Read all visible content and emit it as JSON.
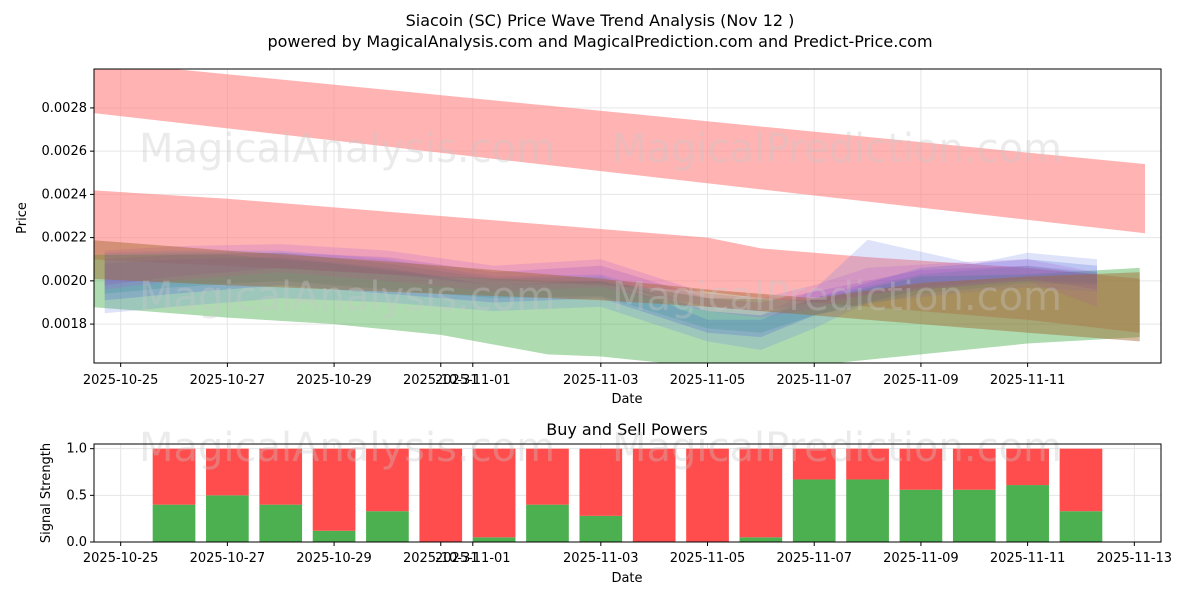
{
  "chart_data": [
    {
      "type": "area",
      "title": "Siacoin (SC) Price Wave Trend Analysis (Nov 12 )",
      "subtitle": "powered by MagicalAnalysis.com and MagicalPrediction.com and Predict-Price.com",
      "xlabel": "Date",
      "ylabel": "Price",
      "xlim": [
        -0.5,
        19.5
      ],
      "ylim": [
        0.00162,
        0.00298
      ],
      "x_ticks": [
        {
          "pos": 0,
          "label": "2025-10-25"
        },
        {
          "pos": 2,
          "label": "2025-10-27"
        },
        {
          "pos": 4,
          "label": "2025-10-29"
        },
        {
          "pos": 6,
          "label": "2025-10-31"
        },
        {
          "pos": 6.6,
          "label": "2025-11-01"
        },
        {
          "pos": 9,
          "label": "2025-11-03"
        },
        {
          "pos": 11,
          "label": "2025-11-05"
        },
        {
          "pos": 13,
          "label": "2025-11-07"
        },
        {
          "pos": 15,
          "label": "2025-11-09"
        },
        {
          "pos": 17,
          "label": "2025-11-11"
        }
      ],
      "y_ticks": [
        {
          "value": 0.0018,
          "label": "0.0018"
        },
        {
          "value": 0.002,
          "label": "0.0020"
        },
        {
          "value": 0.0022,
          "label": "0.0022"
        },
        {
          "value": 0.0024,
          "label": "0.0024"
        },
        {
          "value": 0.0026,
          "label": "0.0026"
        },
        {
          "value": 0.0028,
          "label": "0.0028"
        }
      ],
      "watermarks": [
        "MagicalAnalysis.com",
        "MagicalPrediction.com"
      ],
      "bands": [
        {
          "name": "upper-resistance",
          "color": "#ff8080",
          "opacity": 0.6,
          "x": [
            -0.65,
            19.2
          ],
          "lower": [
            0.00278,
            0.00222
          ],
          "upper": [
            0.00302,
            0.00254
          ]
        },
        {
          "name": "middle-resistance",
          "color": "#ff8080",
          "opacity": 0.6,
          "x": [
            -0.6,
            2,
            5,
            9,
            11,
            12,
            14,
            17,
            19.1
          ],
          "lower": [
            0.0021,
            0.00207,
            0.00203,
            0.00198,
            0.00195,
            0.00192,
            0.00188,
            0.00182,
            0.00176
          ],
          "upper": [
            0.00242,
            0.00238,
            0.00232,
            0.00224,
            0.0022,
            0.00215,
            0.00211,
            0.00206,
            0.00201
          ]
        },
        {
          "name": "support",
          "color": "#4caf50",
          "opacity": 0.45,
          "x": [
            -0.6,
            2,
            4,
            6,
            8,
            9,
            11,
            13,
            15,
            17,
            19.1
          ],
          "lower": [
            0.00188,
            0.00183,
            0.0018,
            0.00175,
            0.00166,
            0.00165,
            0.0016,
            0.00161,
            0.00166,
            0.00171,
            0.00174
          ],
          "upper": [
            0.00212,
            0.00212,
            0.00208,
            0.00202,
            0.002,
            0.002,
            0.00192,
            0.00191,
            0.00202,
            0.00203,
            0.00206
          ]
        },
        {
          "name": "wave-blue-a",
          "color": "#6a7fe6",
          "opacity": 0.22,
          "x": [
            -0.3,
            1,
            3,
            5,
            7,
            9,
            10,
            11,
            12,
            13,
            14,
            16,
            17,
            18.3
          ],
          "lower": [
            0.00185,
            0.00188,
            0.00192,
            0.0019,
            0.00186,
            0.00188,
            0.0018,
            0.00172,
            0.00168,
            0.00178,
            0.0019,
            0.00195,
            0.00197,
            0.00195
          ],
          "upper": [
            0.00213,
            0.00214,
            0.00214,
            0.0021,
            0.00202,
            0.00203,
            0.00196,
            0.00186,
            0.00184,
            0.00196,
            0.00219,
            0.00208,
            0.00213,
            0.0021
          ]
        },
        {
          "name": "wave-blue-b",
          "color": "#3c5dd6",
          "opacity": 0.22,
          "x": [
            -0.3,
            1,
            3,
            5,
            7,
            9,
            10,
            11,
            12,
            13,
            15,
            17,
            18.3
          ],
          "lower": [
            0.00191,
            0.00194,
            0.00198,
            0.00194,
            0.0019,
            0.00192,
            0.00184,
            0.00176,
            0.00174,
            0.00184,
            0.00196,
            0.002,
            0.00199
          ],
          "upper": [
            0.00208,
            0.0021,
            0.00211,
            0.00206,
            0.00198,
            0.002,
            0.00192,
            0.00182,
            0.00182,
            0.00192,
            0.00206,
            0.0021,
            0.00207
          ]
        },
        {
          "name": "wave-teal",
          "color": "#2e8b8b",
          "opacity": 0.22,
          "x": [
            -0.3,
            1,
            3,
            5,
            7,
            9,
            11,
            12,
            13,
            15,
            17,
            18.3
          ],
          "lower": [
            0.00194,
            0.00197,
            0.002,
            0.00196,
            0.00192,
            0.00193,
            0.00178,
            0.00176,
            0.00184,
            0.00194,
            0.00199,
            0.00198
          ],
          "upper": [
            0.00212,
            0.00213,
            0.00213,
            0.00208,
            0.00201,
            0.00202,
            0.00186,
            0.00184,
            0.00192,
            0.00203,
            0.00207,
            0.00204
          ]
        },
        {
          "name": "wave-purple-a",
          "color": "#b05bd6",
          "opacity": 0.22,
          "x": [
            -0.3,
            1,
            3,
            5,
            7,
            9,
            11,
            12,
            13,
            14,
            16,
            17,
            18.3
          ],
          "lower": [
            0.00196,
            0.002,
            0.00204,
            0.002,
            0.00195,
            0.00197,
            0.00186,
            0.00183,
            0.00187,
            0.00194,
            0.00198,
            0.002,
            0.00188
          ],
          "upper": [
            0.00214,
            0.00216,
            0.00217,
            0.00214,
            0.00207,
            0.0021,
            0.00194,
            0.00192,
            0.00198,
            0.00206,
            0.00209,
            0.0021,
            0.00204
          ]
        },
        {
          "name": "wave-purple-b",
          "color": "#8a3fc4",
          "opacity": 0.2,
          "x": [
            -0.3,
            1,
            3,
            5,
            7,
            9,
            11,
            12,
            13,
            15,
            17,
            18.3
          ],
          "lower": [
            0.00198,
            0.00202,
            0.00206,
            0.00203,
            0.00198,
            0.00199,
            0.00188,
            0.00186,
            0.0019,
            0.00197,
            0.00201,
            0.00196
          ],
          "upper": [
            0.0021,
            0.00212,
            0.00213,
            0.00211,
            0.00204,
            0.00207,
            0.00192,
            0.0019,
            0.00195,
            0.00205,
            0.00207,
            0.00203
          ]
        },
        {
          "name": "wave-brown",
          "color": "#a0672e",
          "opacity": 0.45,
          "x": [
            -0.6,
            2,
            5,
            9,
            11,
            13,
            15,
            17,
            19.1
          ],
          "lower": [
            0.00201,
            0.00198,
            0.00195,
            0.00191,
            0.00188,
            0.00184,
            0.0018,
            0.00176,
            0.00172
          ],
          "upper": [
            0.00219,
            0.00214,
            0.00209,
            0.00201,
            0.00196,
            0.00192,
            0.00199,
            0.00202,
            0.00204
          ]
        }
      ]
    },
    {
      "type": "bar",
      "title": "Buy and Sell Powers",
      "xlabel": "Date",
      "ylabel": "Signal Strength",
      "xlim": [
        -0.5,
        19.5
      ],
      "ylim": [
        0,
        1.05
      ],
      "x_ticks": [
        {
          "pos": 0,
          "label": "2025-10-25"
        },
        {
          "pos": 2,
          "label": "2025-10-27"
        },
        {
          "pos": 4,
          "label": "2025-10-29"
        },
        {
          "pos": 6,
          "label": "2025-10-31"
        },
        {
          "pos": 6.6,
          "label": "2025-11-01"
        },
        {
          "pos": 9,
          "label": "2025-11-03"
        },
        {
          "pos": 11,
          "label": "2025-11-05"
        },
        {
          "pos": 13,
          "label": "2025-11-07"
        },
        {
          "pos": 15,
          "label": "2025-11-09"
        },
        {
          "pos": 17,
          "label": "2025-11-11"
        },
        {
          "pos": 19,
          "label": "2025-11-13"
        }
      ],
      "y_ticks": [
        {
          "value": 0,
          "label": "0.0"
        },
        {
          "value": 0.5,
          "label": "0.5"
        },
        {
          "value": 1.0,
          "label": "1.0"
        }
      ],
      "watermarks": [
        "MagicalAnalysis.com",
        "MagicalPrediction.com"
      ],
      "buy_color": "#4caf50",
      "sell_color": "#ff4c4c",
      "bars": [
        {
          "pos": 1,
          "buy": 0.4
        },
        {
          "pos": 2,
          "buy": 0.5
        },
        {
          "pos": 3,
          "buy": 0.4
        },
        {
          "pos": 4,
          "buy": 0.12
        },
        {
          "pos": 5,
          "buy": 0.33
        },
        {
          "pos": 6,
          "buy": 0.0
        },
        {
          "pos": 7,
          "buy": 0.05
        },
        {
          "pos": 8,
          "buy": 0.4
        },
        {
          "pos": 9,
          "buy": 0.28
        },
        {
          "pos": 10,
          "buy": 0.0
        },
        {
          "pos": 11,
          "buy": 0.0
        },
        {
          "pos": 12,
          "buy": 0.05
        },
        {
          "pos": 13,
          "buy": 0.67
        },
        {
          "pos": 14,
          "buy": 0.67
        },
        {
          "pos": 15,
          "buy": 0.56
        },
        {
          "pos": 16,
          "buy": 0.56
        },
        {
          "pos": 17,
          "buy": 0.61
        },
        {
          "pos": 18,
          "buy": 0.33
        }
      ]
    }
  ]
}
